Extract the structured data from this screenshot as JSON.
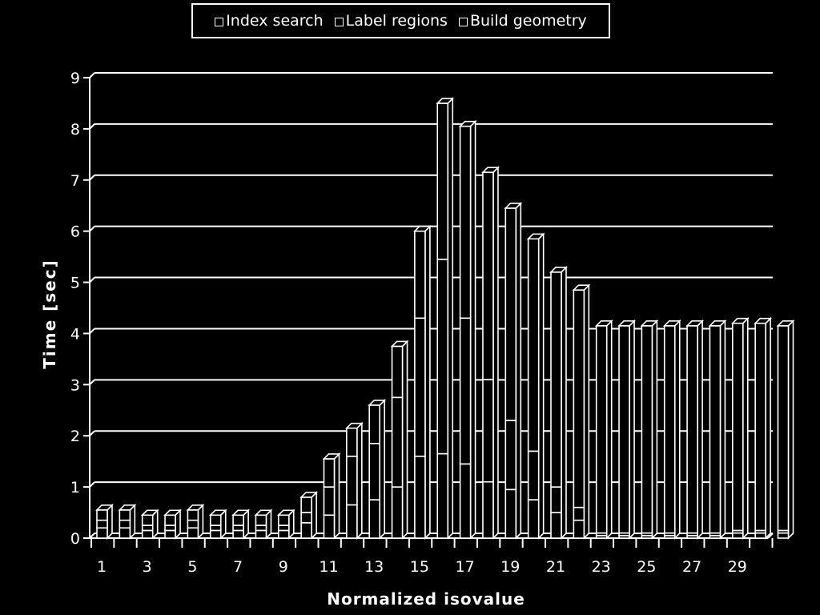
{
  "chart_data": {
    "type": "bar",
    "stacked": true,
    "style": "3d-outline",
    "xlabel": "Normalized isovalue",
    "ylabel": "Time [sec]",
    "ylim": [
      0,
      9
    ],
    "yticks": [
      "0",
      "1",
      "2",
      "3",
      "4",
      "5",
      "6",
      "7",
      "8",
      "9"
    ],
    "xtick_labels": [
      "1",
      "3",
      "5",
      "7",
      "9",
      "11",
      "13",
      "15",
      "17",
      "19",
      "21",
      "23",
      "25",
      "27",
      "29"
    ],
    "categories": [
      "1",
      "2",
      "3",
      "4",
      "5",
      "6",
      "7",
      "8",
      "9",
      "10",
      "11",
      "12",
      "13",
      "14",
      "15",
      "16",
      "17",
      "18",
      "19",
      "20",
      "21",
      "22",
      "23",
      "24",
      "25",
      "26",
      "27",
      "28",
      "29",
      "30",
      "31"
    ],
    "grid": true,
    "legend_position": "top",
    "colors": {
      "background": "#000000",
      "line": "#ffffff"
    },
    "series": [
      {
        "name": "Index search",
        "values": [
          0.2,
          0.2,
          0.15,
          0.15,
          0.2,
          0.15,
          0.15,
          0.15,
          0.15,
          0.3,
          0.45,
          0.65,
          0.75,
          1.0,
          1.6,
          1.65,
          1.45,
          1.1,
          0.95,
          0.75,
          0.5,
          0.35,
          0.05,
          0.05,
          0.05,
          0.05,
          0.05,
          0.05,
          0.1,
          0.1,
          0.1
        ]
      },
      {
        "name": "Label regions",
        "values": [
          0.15,
          0.15,
          0.1,
          0.1,
          0.15,
          0.1,
          0.1,
          0.1,
          0.1,
          0.2,
          0.55,
          0.95,
          1.1,
          1.75,
          2.7,
          3.8,
          2.85,
          2.0,
          1.35,
          0.95,
          0.5,
          0.25,
          0.05,
          0.05,
          0.05,
          0.05,
          0.05,
          0.05,
          0.05,
          0.05,
          0.05
        ]
      },
      {
        "name": "Build geometry",
        "values": [
          0.2,
          0.2,
          0.2,
          0.2,
          0.2,
          0.2,
          0.2,
          0.2,
          0.2,
          0.3,
          0.55,
          0.55,
          0.75,
          1.0,
          1.7,
          3.05,
          3.75,
          4.05,
          4.15,
          4.15,
          4.2,
          4.25,
          4.05,
          4.05,
          4.05,
          4.05,
          4.05,
          4.05,
          4.05,
          4.05,
          4.0
        ]
      }
    ]
  }
}
